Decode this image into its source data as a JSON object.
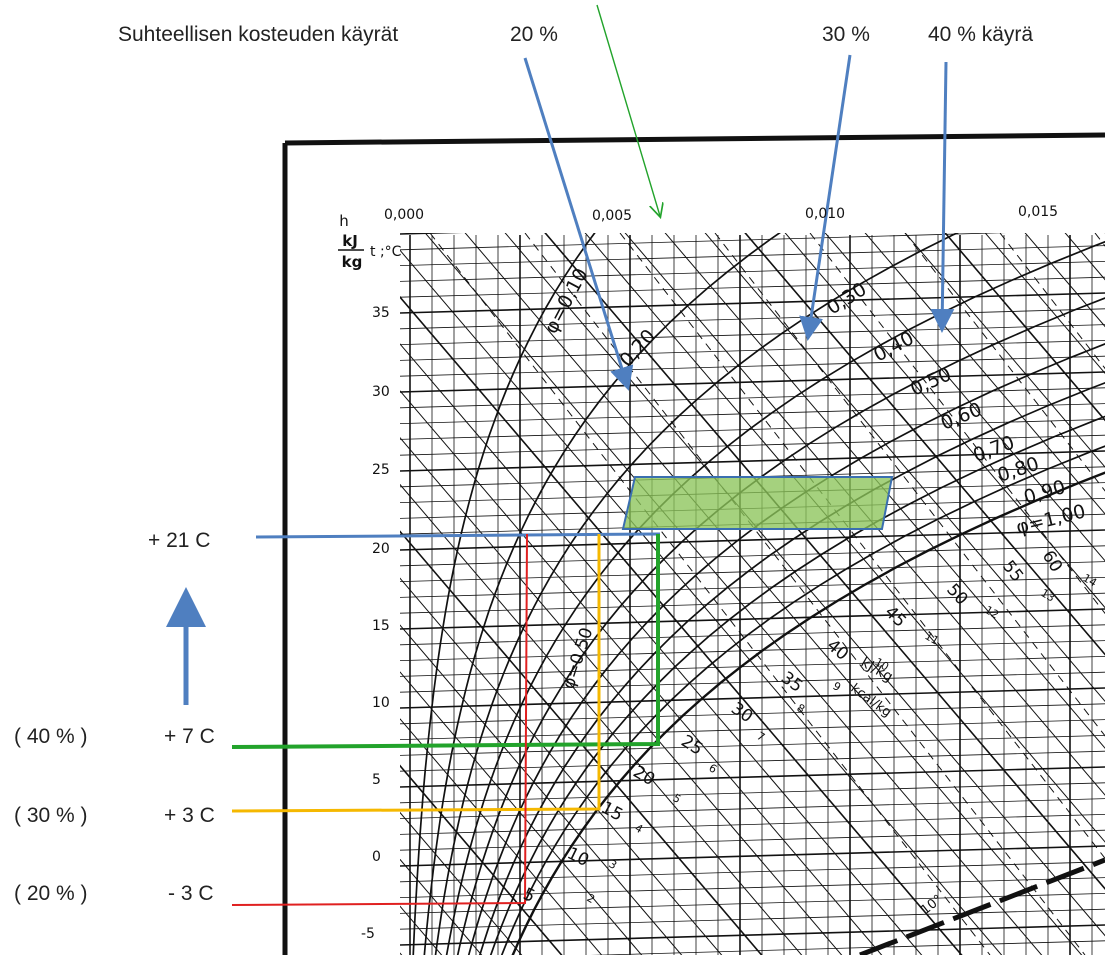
{
  "annotations": {
    "curves_title": "Suhteellisen kosteuden käyrät",
    "curve_20": "20 %",
    "curve_30": "30 %",
    "curve_40": "40  % käyrä"
  },
  "temperatures": [
    {
      "rh": "( 40 % )",
      "temp": "+ 7 C",
      "color": "#22a32b"
    },
    {
      "rh": "( 30 % )",
      "temp": "+ 3 C",
      "color": "#f5b800"
    },
    {
      "rh": "( 20 % )",
      "temp": "- 3 C",
      "color": "#e02020"
    }
  ],
  "target_temp": "+ 21 C",
  "colors": {
    "annotation_arrow": "#4f7fc0",
    "green_arrow": "#22a32b",
    "comfort_zone_fill": "#8cc45a",
    "comfort_zone_border": "#3a6fb0",
    "chart_ink": "#111111"
  },
  "chart": {
    "axis_h_unit": "h",
    "axis_kj": "kJ",
    "axis_kg": "kg",
    "axis_t_unit": "t ;°C",
    "x_ticks": [
      "0,000",
      "0,005",
      "0,010",
      "0,015"
    ],
    "y_ticks": [
      "35",
      "30",
      "25",
      "20",
      "15",
      "10",
      "5",
      "0",
      "-5"
    ],
    "rh_curve_labels": [
      "φ=0,10",
      "0,20",
      "0,30",
      "0,40",
      "0,50",
      "0,60",
      "0,70",
      "0,80",
      "0,90",
      "φ=1,00"
    ],
    "phi_050": "φ=0,50",
    "enthalpy_labels": [
      "60",
      "55",
      "50",
      "45",
      "40",
      "35",
      "30",
      "25",
      "20",
      "15",
      "10",
      "5"
    ],
    "kcal_labels": [
      "14",
      "13",
      "12",
      "11",
      "10",
      "9",
      "8",
      "7",
      "6",
      "5",
      "4",
      "3",
      "2"
    ],
    "unit_kj": "kJ/kg",
    "unit_kcal": "kcal/kg",
    "wet_bulb_label": "10°"
  }
}
